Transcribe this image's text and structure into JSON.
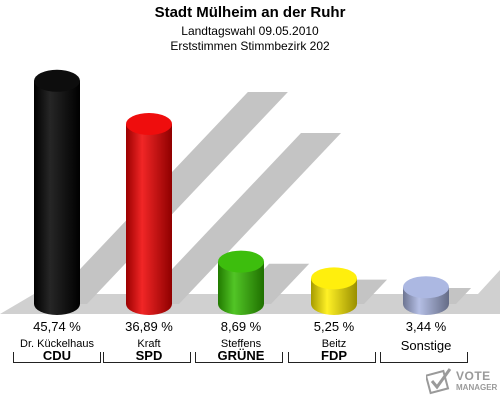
{
  "title": "Stadt Mülheim an der Ruhr",
  "subtitle1": "Landtagswahl 09.05.2010",
  "subtitle2": "Erststimmen Stimmbezirk 202",
  "logo": {
    "line1": "VOTE",
    "line2": "MANAGER"
  },
  "chart_data": {
    "type": "bar",
    "categories": [
      "CDU",
      "SPD",
      "GRÜNE",
      "FDP",
      "Sonstige"
    ],
    "candidates": [
      "Dr. Kückelhaus",
      "Kraft",
      "Steffens",
      "Beitz",
      ""
    ],
    "values": [
      45.74,
      36.89,
      8.69,
      5.25,
      3.44
    ],
    "value_labels": [
      "45,74 %",
      "36,89 %",
      "8,69 %",
      "5,25 %",
      "3,44 %"
    ],
    "colors": [
      "#000000",
      "#ee0000",
      "#33bb00",
      "#ffee00",
      "#a8b4e0"
    ],
    "ylim": [
      0,
      50
    ]
  }
}
